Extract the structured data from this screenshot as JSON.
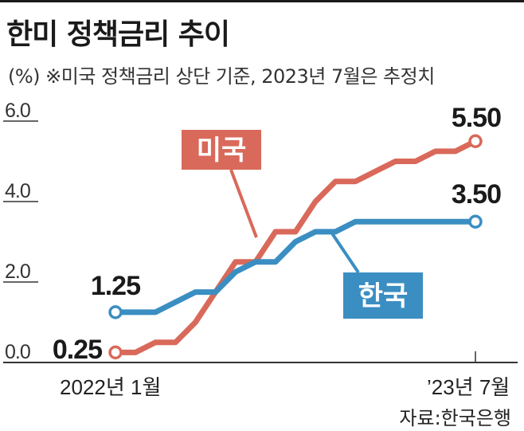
{
  "header": {
    "title": "한미 정책금리 추이",
    "subtitle": "(%) ※미국 정책금리 상단 기준, 2023년 7월은 추정치"
  },
  "source": "자료:한국은행",
  "colors": {
    "us": "#d9695a",
    "korea": "#3a8ec2",
    "axis": "#333333",
    "text": "#1a1a1a"
  },
  "chart_data": {
    "type": "line",
    "title": "한미 정책금리 추이",
    "unit": "(%)",
    "note": "※미국 정책금리 상단 기준, 2023년 7월은 추정치",
    "ylim": [
      0,
      6
    ],
    "yticks": [
      "6.0",
      "4.0",
      "2.0",
      "0.0"
    ],
    "x_start_label": "2022년 1월",
    "x_end_label": "’23년 7월",
    "x": [
      "2022-01",
      "2022-02",
      "2022-03",
      "2022-04",
      "2022-05",
      "2022-06",
      "2022-07",
      "2022-08",
      "2022-09",
      "2022-10",
      "2022-11",
      "2022-12",
      "2023-01",
      "2023-02",
      "2023-03",
      "2023-04",
      "2023-05",
      "2023-06",
      "2023-07"
    ],
    "series": [
      {
        "name": "미국",
        "key": "us",
        "values": [
          0.25,
          0.25,
          0.5,
          0.5,
          1.0,
          1.75,
          2.5,
          2.5,
          3.25,
          3.25,
          4.0,
          4.5,
          4.5,
          4.75,
          5.0,
          5.0,
          5.25,
          5.25,
          5.5
        ],
        "start_label": "0.25",
        "end_label": "5.50"
      },
      {
        "name": "한국",
        "key": "korea",
        "values": [
          1.25,
          1.25,
          1.25,
          1.5,
          1.75,
          1.75,
          2.25,
          2.5,
          2.5,
          3.0,
          3.25,
          3.25,
          3.5,
          3.5,
          3.5,
          3.5,
          3.5,
          3.5,
          3.5
        ],
        "start_label": "1.25",
        "end_label": "3.50"
      }
    ]
  }
}
